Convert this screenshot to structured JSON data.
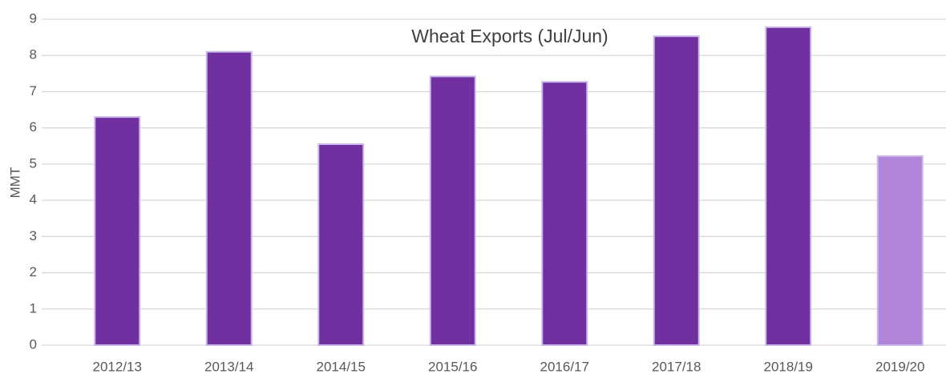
{
  "chart_data": {
    "type": "bar",
    "title": "Wheat Exports (Jul/Jun)",
    "ylabel": "MMT",
    "categories": [
      "2012/13",
      "2013/14",
      "2014/15",
      "2015/16",
      "2016/17",
      "2017/18",
      "2018/19",
      "2019/20"
    ],
    "values": [
      6.3,
      8.1,
      5.55,
      7.42,
      7.27,
      8.53,
      8.78,
      5.22
    ],
    "colors": [
      "#7030a0",
      "#7030a0",
      "#7030a0",
      "#7030a0",
      "#7030a0",
      "#7030a0",
      "#7030a0",
      "#b084d9"
    ],
    "ylim": [
      0,
      9
    ],
    "yticks": [
      0,
      1,
      2,
      3,
      4,
      5,
      6,
      7,
      8,
      9
    ],
    "grid": true
  }
}
